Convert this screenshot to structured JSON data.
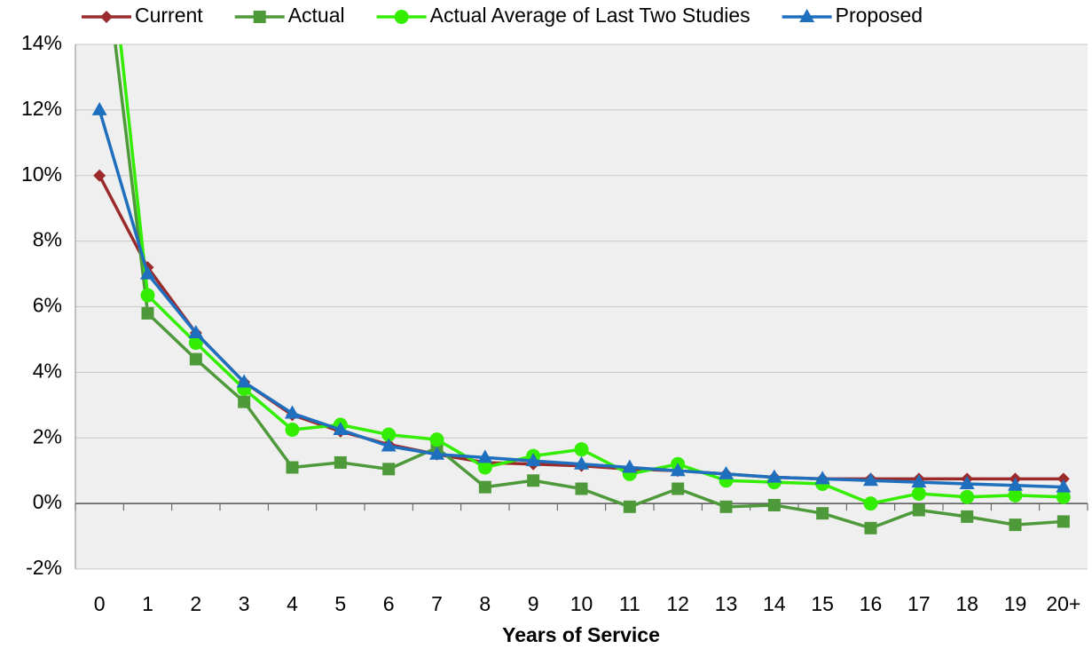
{
  "chart_data": {
    "type": "line",
    "x_label": "Years of Service",
    "categories": [
      "0",
      "1",
      "2",
      "3",
      "4",
      "5",
      "6",
      "7",
      "8",
      "9",
      "10",
      "11",
      "12",
      "13",
      "14",
      "15",
      "16",
      "17",
      "18",
      "19",
      "20+"
    ],
    "series": [
      {
        "name": "Current",
        "color": "#9b2b2b",
        "marker": "diamond",
        "values": [
          10,
          7.2,
          5.2,
          3.7,
          2.7,
          2.2,
          1.8,
          1.5,
          1.25,
          1.2,
          1.15,
          1.05,
          1.0,
          0.9,
          0.8,
          0.75,
          0.75,
          0.75,
          0.75,
          0.75,
          0.75
        ]
      },
      {
        "name": "Actual",
        "color": "#4e9a3a",
        "marker": "square",
        "values": [
          18,
          5.8,
          4.4,
          3.1,
          1.1,
          1.25,
          1.05,
          1.7,
          0.5,
          0.7,
          0.45,
          -0.1,
          0.45,
          -0.1,
          -0.05,
          -0.3,
          -0.75,
          -0.2,
          -0.4,
          -0.65,
          -0.55
        ]
      },
      {
        "name": "Actual Average of Last Two Studies",
        "color": "#33ee00",
        "marker": "circle",
        "values": [
          20,
          6.35,
          4.9,
          3.5,
          2.25,
          2.4,
          2.1,
          1.95,
          1.1,
          1.45,
          1.65,
          0.9,
          1.2,
          0.7,
          0.65,
          0.6,
          0.0,
          0.3,
          0.2,
          0.25,
          0.2
        ]
      },
      {
        "name": "Proposed",
        "color": "#1f6fbf",
        "marker": "triangle",
        "values": [
          12,
          7.0,
          5.2,
          3.7,
          2.75,
          2.25,
          1.75,
          1.5,
          1.4,
          1.3,
          1.2,
          1.1,
          1.0,
          0.9,
          0.8,
          0.75,
          0.7,
          0.65,
          0.6,
          0.55,
          0.5
        ]
      }
    ],
    "ylim": [
      -2,
      14
    ],
    "yticks": [
      {
        "value": -2,
        "label": "-2%"
      },
      {
        "value": 0,
        "label": "0%"
      },
      {
        "value": 2,
        "label": "2%"
      },
      {
        "value": 4,
        "label": "4%"
      },
      {
        "value": 6,
        "label": "6%"
      },
      {
        "value": 8,
        "label": "8%"
      },
      {
        "value": 10,
        "label": "10%"
      },
      {
        "value": 12,
        "label": "12%"
      },
      {
        "value": 14,
        "label": "14%"
      }
    ],
    "grid": true,
    "legend": "top"
  }
}
